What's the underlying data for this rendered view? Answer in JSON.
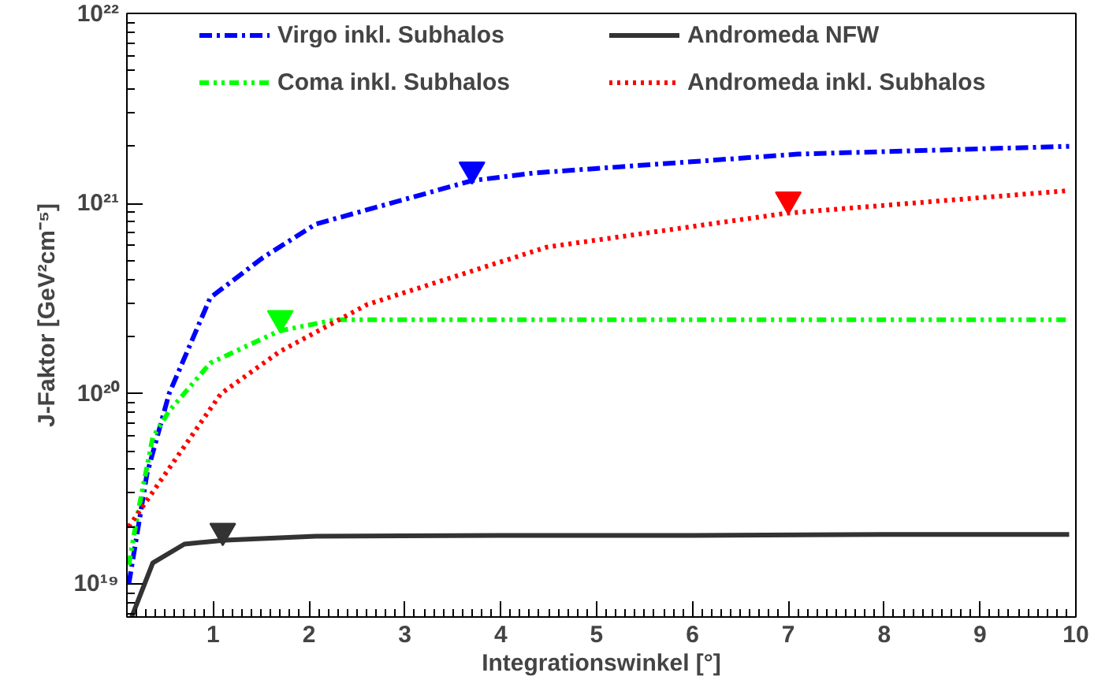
{
  "chart_data": {
    "type": "line",
    "xlabel": "Integrationswinkel [°]",
    "ylabel": "J-Faktor [GeV²cm⁻⁵]",
    "log": "y",
    "grid": false,
    "legend": "top",
    "xlim": [
      0.1,
      10
    ],
    "ylim": [
      6.7e+18,
      1e+22
    ],
    "xticks": [
      1,
      2,
      3,
      4,
      5,
      6,
      7,
      8,
      9,
      10
    ],
    "yticks": [
      {
        "value": 1e+19,
        "label": "10¹⁹"
      },
      {
        "value": 1e+20,
        "label": "10²⁰"
      },
      {
        "value": 1e+21,
        "label": "10²¹"
      },
      {
        "value": 1e+22,
        "label": "10²²"
      }
    ],
    "series": [
      {
        "name": "Virgo inkl. Subhalos",
        "color": "#0000ff",
        "line_style": "dashdot",
        "x": [
          0.12,
          0.31,
          0.54,
          0.97,
          1.52,
          2.07,
          3.7,
          4.36,
          7.1,
          9.93
        ],
        "values": [
          1e+19,
          3.8e+19,
          1e+20,
          3.2e+20,
          5.2e+20,
          7.8e+20,
          1.32e+21,
          1.45e+21,
          1.82e+21,
          2e+21
        ]
      },
      {
        "name": "Coma inkl. Subhalos",
        "color": "#00ff00",
        "line_style": "dashdotdot",
        "x": [
          0.12,
          0.21,
          0.37,
          0.54,
          0.97,
          1.69,
          2.28,
          4,
          6,
          8,
          9.93
        ],
        "values": [
          1.26e+19,
          2.3e+19,
          5.9e+19,
          8.1e+19,
          1.45e+20,
          2.14e+20,
          2.45e+20,
          2.45e+20,
          2.45e+20,
          2.45e+20,
          2.45e+20
        ]
      },
      {
        "name": "Andromeda NFW",
        "color": "#333333",
        "line_style": "solid",
        "x": [
          0.15,
          0.37,
          0.7,
          1.13,
          2.07,
          4,
          6,
          8,
          9.93
        ],
        "values": [
          6.7e+18,
          1.29e+19,
          1.62e+19,
          1.7e+19,
          1.78e+19,
          1.8e+19,
          1.8e+19,
          1.82e+19,
          1.82e+19
        ]
      },
      {
        "name": "Andromeda inkl. Subhalos",
        "color": "#ff0000",
        "line_style": "dotted",
        "x": [
          0.12,
          0.59,
          1.08,
          1.69,
          2.61,
          4.48,
          6.98,
          9.93
        ],
        "values": [
          2e+19,
          4.4e+19,
          1e+20,
          1.66e+20,
          2.95e+20,
          5.9e+20,
          8.9e+20,
          1.17e+21
        ]
      },
      {
        "type": "scatter",
        "marker": "triangle",
        "color": "#0000ff",
        "x": [
          3.7
        ],
        "values": [
          1.51e+21
        ]
      },
      {
        "type": "scatter",
        "marker": "triangle",
        "color": "#00ff00",
        "x": [
          1.7
        ],
        "values": [
          2.5e+20
        ]
      },
      {
        "type": "scatter",
        "marker": "triangle",
        "color": "#333333",
        "x": [
          1.1
        ],
        "values": [
          1.9e+19
        ]
      },
      {
        "type": "scatter",
        "marker": "triangle",
        "color": "#ff0000",
        "x": [
          7.0
        ],
        "values": [
          1.05e+21
        ]
      }
    ]
  }
}
